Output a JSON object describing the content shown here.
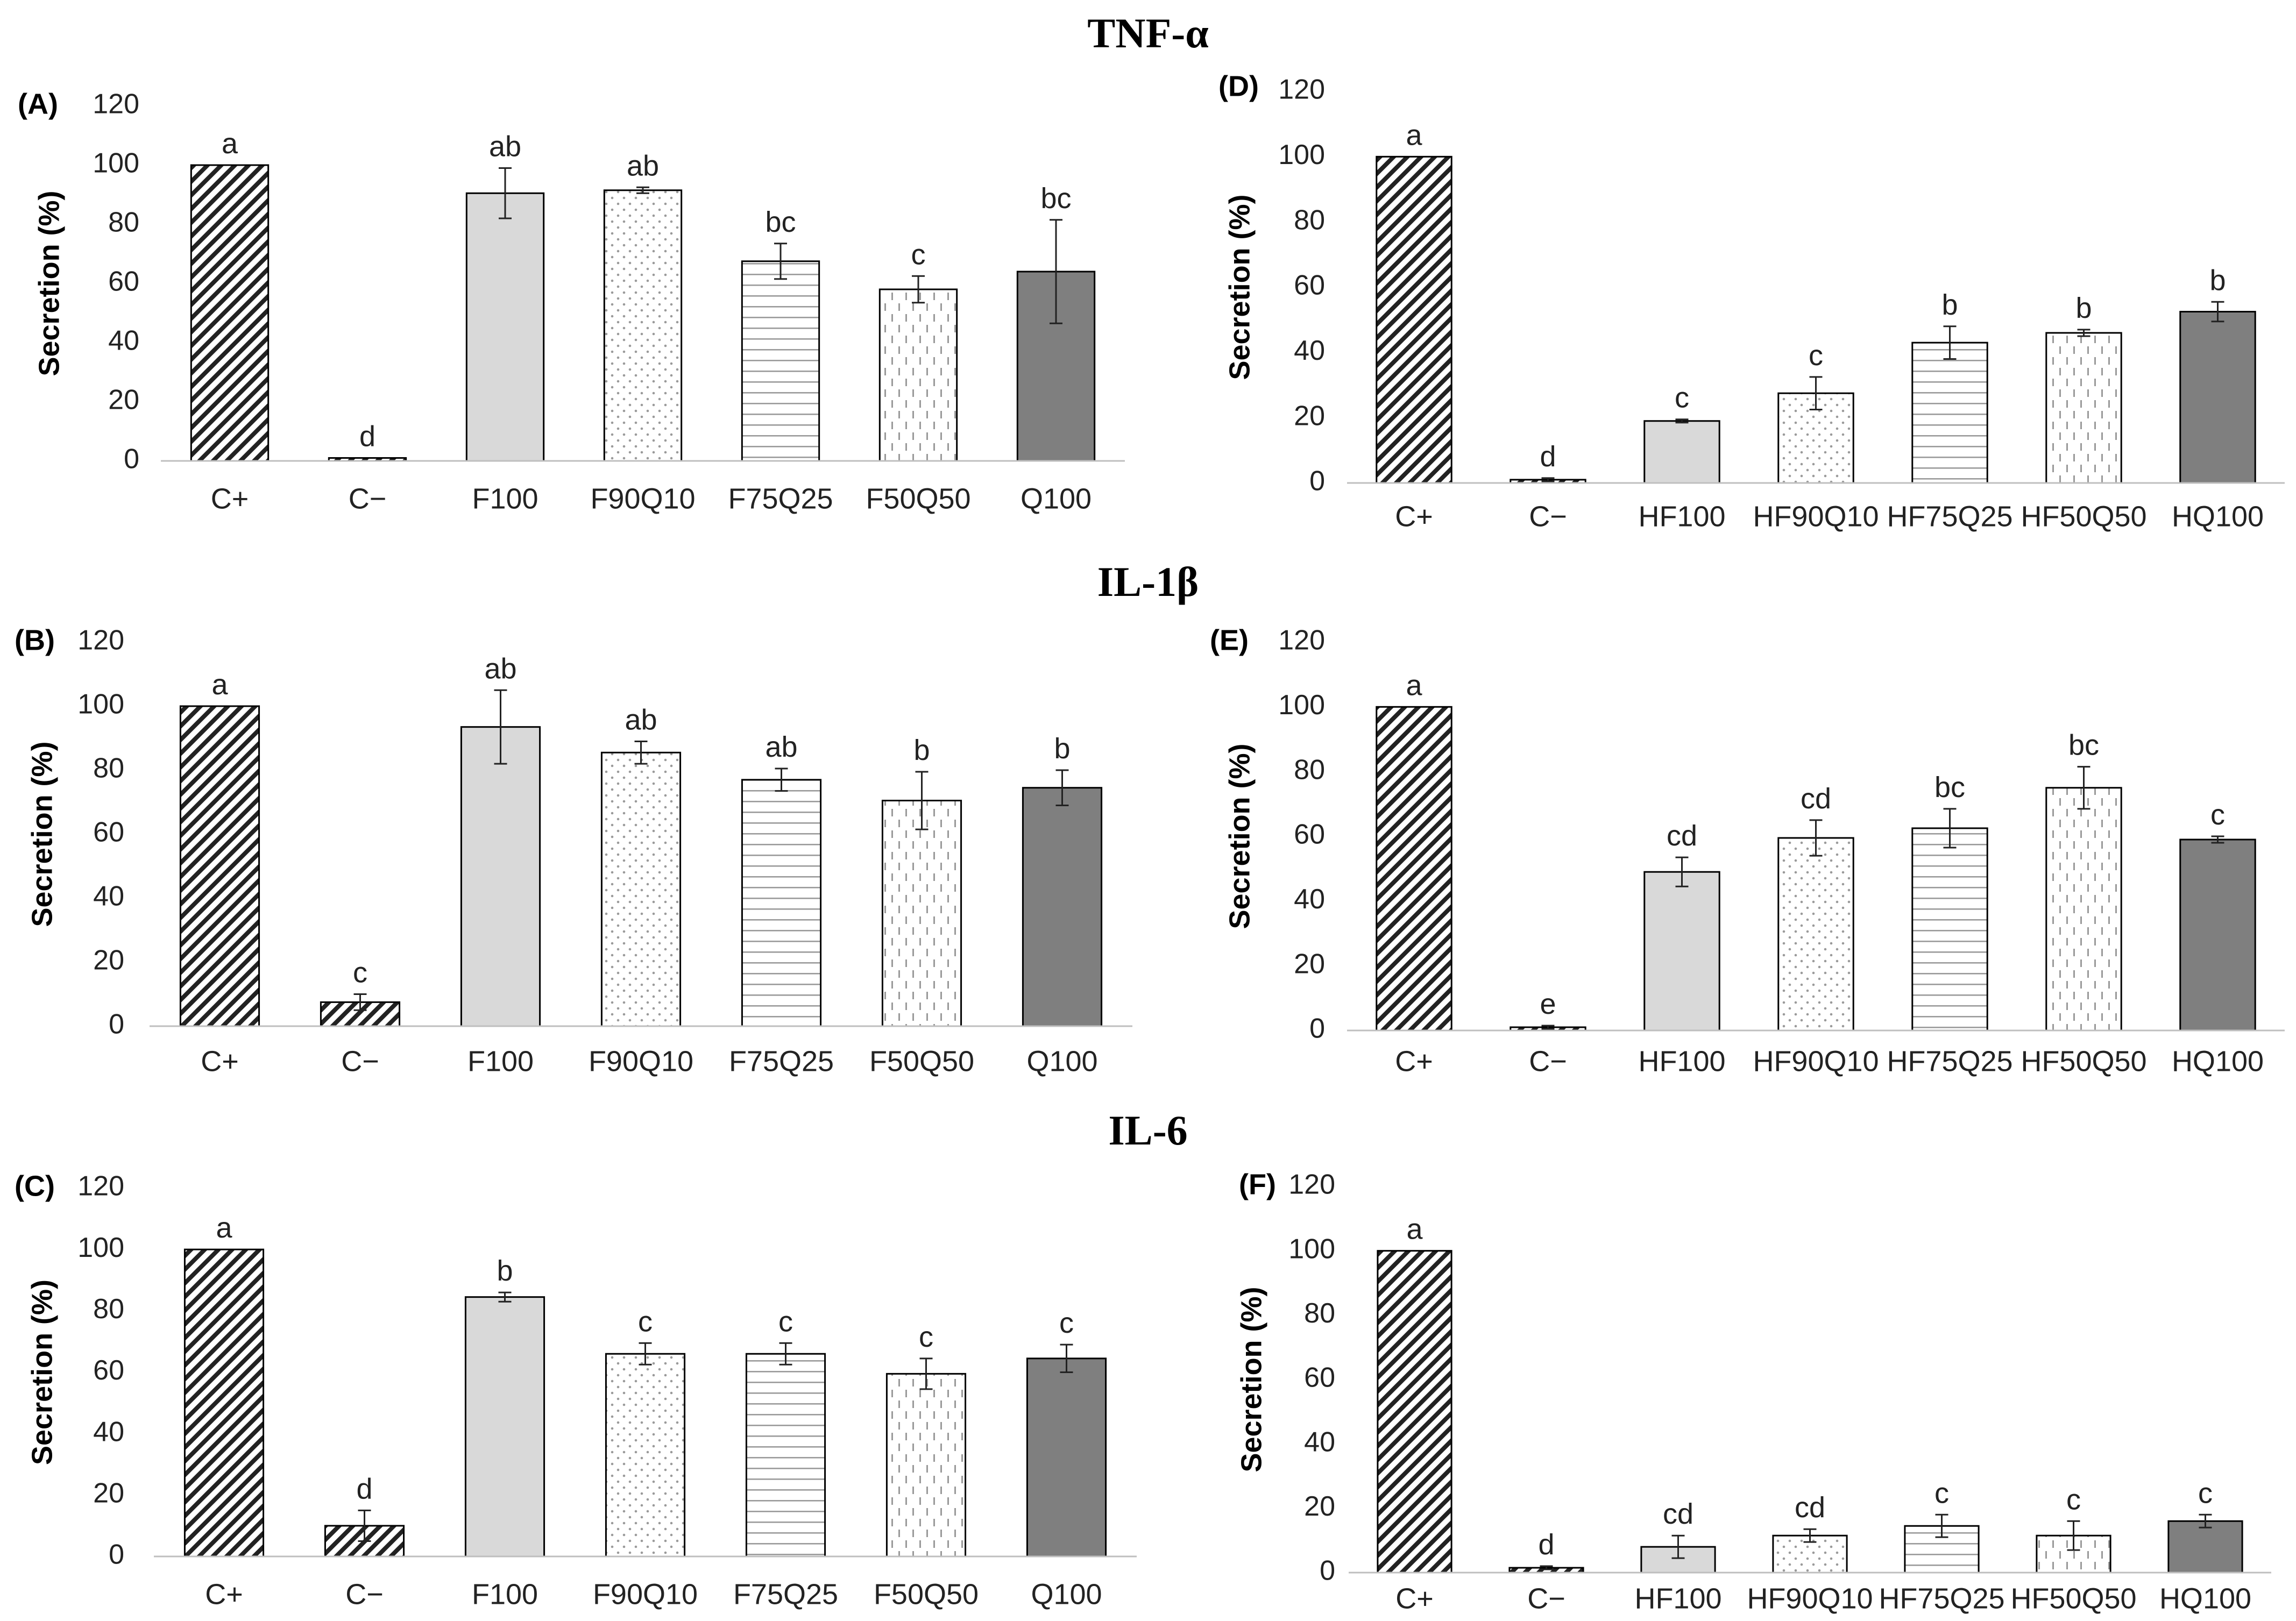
{
  "sections": [
    "TNF-α",
    "IL-1β",
    "IL-6"
  ],
  "chart_data": [
    {
      "panel": "(A)",
      "type": "bar",
      "ylabel": "Secretion (%)",
      "ylim": [
        0,
        120
      ],
      "yticks": [
        0,
        20,
        40,
        60,
        80,
        100,
        120
      ],
      "categories": [
        "C+",
        "C−",
        "F100",
        "F90Q10",
        "F75Q25",
        "F50Q50",
        "Q100"
      ],
      "values": [
        100,
        1,
        90.5,
        91.5,
        67.5,
        58,
        64
      ],
      "errors": [
        0,
        0,
        8.5,
        1,
        6,
        4.5,
        17.5
      ],
      "letters": [
        "a",
        "d",
        "ab",
        "ab",
        "bc",
        "c",
        "bc"
      ]
    },
    {
      "panel": "(B)",
      "type": "bar",
      "ylabel": "Secretion (%)",
      "ylim": [
        0,
        120
      ],
      "yticks": [
        0,
        20,
        40,
        60,
        80,
        100,
        120
      ],
      "categories": [
        "C+",
        "C−",
        "F100",
        "F90Q10",
        "F75Q25",
        "F50Q50",
        "Q100"
      ],
      "values": [
        100,
        7.5,
        93.5,
        85.5,
        77,
        70.5,
        74.5
      ],
      "errors": [
        0,
        2.5,
        11.5,
        3.5,
        3.5,
        9,
        5.5
      ],
      "letters": [
        "a",
        "c",
        "ab",
        "ab",
        "ab",
        "b",
        "b"
      ]
    },
    {
      "panel": "(C)",
      "type": "bar",
      "ylabel": "Secretion (%)",
      "ylim": [
        0,
        120
      ],
      "yticks": [
        0,
        20,
        40,
        60,
        80,
        100,
        120
      ],
      "categories": [
        "C+",
        "C−",
        "F100",
        "F90Q10",
        "F75Q25",
        "F50Q50",
        "Q100"
      ],
      "values": [
        100,
        10,
        84.5,
        66,
        66,
        59.5,
        64.5
      ],
      "errors": [
        0,
        5,
        1.5,
        3.5,
        3.5,
        5,
        4.5
      ],
      "letters": [
        "a",
        "d",
        "b",
        "c",
        "c",
        "c",
        "c"
      ]
    },
    {
      "panel": "(D)",
      "type": "bar",
      "ylabel": "Secretion (%)",
      "ylim": [
        0,
        120
      ],
      "yticks": [
        0,
        20,
        40,
        60,
        80,
        100,
        120
      ],
      "categories": [
        "C+",
        "C−",
        "HF100",
        "HF90Q10",
        "HF75Q25",
        "HF50Q50",
        "HQ100"
      ],
      "values": [
        100,
        1,
        19,
        27.5,
        43,
        46,
        52.5
      ],
      "errors": [
        0,
        0.5,
        0.5,
        5,
        5,
        1,
        3
      ],
      "letters": [
        "a",
        "d",
        "c",
        "c",
        "b",
        "b",
        "b"
      ]
    },
    {
      "panel": "(E)",
      "type": "bar",
      "ylabel": "Secretion (%)",
      "ylim": [
        0,
        120
      ],
      "yticks": [
        0,
        20,
        40,
        60,
        80,
        100,
        120
      ],
      "categories": [
        "C+",
        "C−",
        "HF100",
        "HF90Q10",
        "HF75Q25",
        "HF50Q50",
        "HQ100"
      ],
      "values": [
        100,
        1,
        49,
        59.5,
        62.5,
        75,
        59
      ],
      "errors": [
        0,
        0.5,
        4.5,
        5.5,
        6,
        6.5,
        1
      ],
      "letters": [
        "a",
        "e",
        "cd",
        "cd",
        "bc",
        "bc",
        "c"
      ]
    },
    {
      "panel": "(F)",
      "type": "bar",
      "ylabel": "Secretion (%)",
      "ylim": [
        0,
        120
      ],
      "yticks": [
        0,
        20,
        40,
        60,
        80,
        100,
        120
      ],
      "categories": [
        "C+",
        "C−",
        "HF100",
        "HF90Q10",
        "HF75Q25",
        "HF50Q50",
        "HQ100"
      ],
      "values": [
        100,
        1.5,
        8,
        11.5,
        14.5,
        11.5,
        16
      ],
      "errors": [
        0,
        0.5,
        3.5,
        2,
        3.5,
        4.5,
        2
      ],
      "letters": [
        "a",
        "d",
        "cd",
        "cd",
        "c",
        "c",
        "c"
      ]
    }
  ]
}
